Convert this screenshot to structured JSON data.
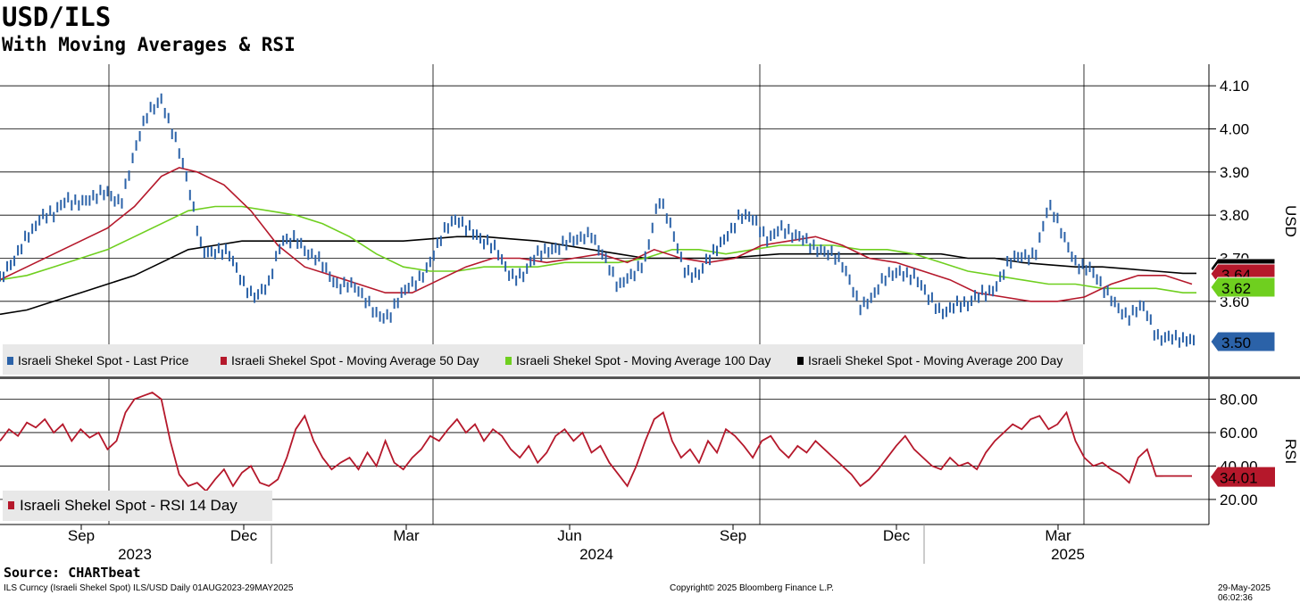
{
  "title": "USD/ILS",
  "subtitle": "With Moving Averages & RSI",
  "source": "Source: CHARTbeat",
  "footer": {
    "left": "ILS Curncy (Israeli Shekel Spot) ILS/USD  Daily 01AUG2023-29MAY2025",
    "center": "Copyright© 2025 Bloomberg Finance L.P.",
    "right": "29-May-2025 06:02:36"
  },
  "chart_data": [
    {
      "type": "line",
      "panel": "price",
      "ylabel": "USD",
      "ylim": [
        3.43,
        4.15
      ],
      "yticks": [
        "4.10",
        "4.00",
        "3.90",
        "3.80",
        "3.70",
        "3.60"
      ],
      "x_month_labels": [
        "Sep",
        "Dec",
        "Mar",
        "Jun",
        "Sep",
        "Dec",
        "Mar"
      ],
      "x_year_labels": [
        "2023",
        "2024",
        "2025"
      ],
      "grid": true,
      "legend_position": "bottom-left",
      "colors": {
        "last": "#2b62a8",
        "ma50": "#b5182b",
        "ma100": "#6fcf1f",
        "ma200": "#000000"
      },
      "series": [
        {
          "name": "Israeli Shekel Spot - Last Price",
          "x": [
            0,
            15,
            30,
            45,
            60,
            75,
            90,
            105,
            120,
            135,
            150,
            165,
            180,
            195,
            210,
            225,
            240,
            255,
            270,
            285,
            300,
            315,
            330,
            345,
            360,
            375,
            390,
            405,
            420,
            435,
            450,
            465,
            480,
            495,
            510,
            525,
            540,
            555,
            570,
            585,
            600,
            615,
            630,
            645,
            660,
            675,
            690,
            705,
            720,
            735,
            750,
            765,
            780,
            795,
            810,
            825,
            840,
            855,
            870,
            885,
            900,
            915,
            930,
            945,
            960,
            975,
            990,
            1005,
            1020,
            1035,
            1050,
            1065,
            1080,
            1095,
            1110,
            1125,
            1140,
            1155,
            1170,
            1185,
            1200,
            1215,
            1230,
            1245,
            1260,
            1275,
            1290,
            1305,
            1320,
            1335
          ],
          "values": [
            3.65,
            3.68,
            3.76,
            3.8,
            3.79,
            3.84,
            3.84,
            3.83,
            3.85,
            3.84,
            3.94,
            4.03,
            4.08,
            3.98,
            3.86,
            3.73,
            3.72,
            3.7,
            3.65,
            3.62,
            3.63,
            3.74,
            3.76,
            3.7,
            3.68,
            3.65,
            3.64,
            3.6,
            3.58,
            3.57,
            3.61,
            3.65,
            3.7,
            3.75,
            3.79,
            3.78,
            3.73,
            3.71,
            3.67,
            3.66,
            3.7,
            3.73,
            3.74,
            3.73,
            3.76,
            3.71,
            3.62,
            3.66,
            3.71,
            3.83,
            3.76,
            3.68,
            3.66,
            3.7,
            3.76,
            3.8,
            3.78,
            3.75,
            3.78,
            3.74,
            3.74,
            3.73,
            3.7,
            3.66,
            3.6,
            3.61,
            3.65,
            3.68,
            3.66,
            3.6,
            3.58,
            3.6,
            3.58,
            3.62,
            3.64,
            3.68,
            3.7,
            3.72,
            3.82,
            3.75,
            3.7,
            3.68,
            3.62,
            3.6,
            3.57,
            3.58,
            3.52,
            3.53,
            3.5,
            3.5
          ]
        },
        {
          "name": "Israeli Shekel Spot - Moving Average 50 Day",
          "x": [
            0,
            30,
            60,
            90,
            120,
            150,
            180,
            200,
            220,
            250,
            280,
            310,
            340,
            370,
            400,
            430,
            460,
            490,
            520,
            550,
            580,
            610,
            640,
            670,
            700,
            730,
            760,
            790,
            820,
            850,
            880,
            910,
            940,
            970,
            1000,
            1030,
            1060,
            1090,
            1120,
            1150,
            1180,
            1210,
            1240,
            1270,
            1300,
            1330
          ],
          "values": [
            3.65,
            3.68,
            3.71,
            3.74,
            3.77,
            3.82,
            3.89,
            3.91,
            3.9,
            3.87,
            3.81,
            3.73,
            3.68,
            3.66,
            3.64,
            3.62,
            3.62,
            3.65,
            3.68,
            3.7,
            3.7,
            3.69,
            3.7,
            3.71,
            3.69,
            3.72,
            3.7,
            3.69,
            3.7,
            3.73,
            3.74,
            3.75,
            3.73,
            3.7,
            3.69,
            3.67,
            3.65,
            3.62,
            3.61,
            3.6,
            3.6,
            3.61,
            3.64,
            3.66,
            3.66,
            3.64
          ]
        },
        {
          "name": "Israeli Shekel Spot - Moving Average 100 Day",
          "x": [
            0,
            30,
            60,
            90,
            120,
            150,
            180,
            210,
            240,
            270,
            300,
            330,
            360,
            390,
            420,
            450,
            480,
            510,
            540,
            570,
            600,
            630,
            660,
            690,
            720,
            750,
            780,
            810,
            840,
            870,
            900,
            930,
            960,
            990,
            1020,
            1050,
            1080,
            1110,
            1140,
            1170,
            1200,
            1230,
            1260,
            1290,
            1320,
            1335
          ],
          "values": [
            3.65,
            3.66,
            3.68,
            3.7,
            3.72,
            3.75,
            3.78,
            3.81,
            3.82,
            3.82,
            3.81,
            3.8,
            3.78,
            3.75,
            3.71,
            3.68,
            3.67,
            3.67,
            3.68,
            3.68,
            3.68,
            3.69,
            3.69,
            3.69,
            3.7,
            3.72,
            3.72,
            3.71,
            3.72,
            3.73,
            3.73,
            3.73,
            3.72,
            3.72,
            3.71,
            3.69,
            3.67,
            3.66,
            3.65,
            3.64,
            3.64,
            3.63,
            3.63,
            3.63,
            3.62,
            3.62
          ]
        },
        {
          "name": "Israeli Shekel Spot - Moving Average 200 Day",
          "x": [
            0,
            30,
            60,
            90,
            120,
            150,
            180,
            210,
            240,
            270,
            300,
            330,
            360,
            390,
            420,
            450,
            480,
            510,
            540,
            570,
            600,
            630,
            660,
            690,
            720,
            750,
            780,
            810,
            840,
            870,
            900,
            930,
            960,
            990,
            1020,
            1050,
            1080,
            1110,
            1140,
            1170,
            1200,
            1230,
            1260,
            1290,
            1320,
            1335
          ],
          "values": [
            3.57,
            3.58,
            3.6,
            3.62,
            3.64,
            3.66,
            3.69,
            3.72,
            3.73,
            3.74,
            3.74,
            3.74,
            3.74,
            3.74,
            3.74,
            3.74,
            3.745,
            3.75,
            3.75,
            3.745,
            3.74,
            3.73,
            3.72,
            3.71,
            3.7,
            3.7,
            3.7,
            3.7,
            3.705,
            3.71,
            3.71,
            3.71,
            3.71,
            3.71,
            3.71,
            3.71,
            3.7,
            3.7,
            3.69,
            3.685,
            3.68,
            3.68,
            3.675,
            3.67,
            3.665,
            3.665
          ]
        }
      ],
      "last_value_labels": [
        {
          "series": "ma200",
          "text": "3.66",
          "value": 3.66
        },
        {
          "series": "ma50",
          "text": "3.64",
          "value": 3.64
        },
        {
          "series": "ma100",
          "text": "3.62",
          "value": 3.62
        },
        {
          "series": "last",
          "text": "3.50",
          "value": 3.5
        }
      ]
    },
    {
      "type": "line",
      "panel": "rsi",
      "ylabel": "RSI",
      "ylim": [
        5,
        92
      ],
      "yticks": [
        "80.00",
        "60.00",
        "40.00",
        "20.00"
      ],
      "grid": true,
      "legend_position": "bottom-left",
      "color": "#b5182b",
      "series": [
        {
          "name": "Israeli Shekel Spot - RSI 14 Day",
          "x": [
            0,
            10,
            20,
            30,
            40,
            50,
            60,
            70,
            80,
            90,
            100,
            110,
            120,
            130,
            140,
            150,
            160,
            170,
            180,
            190,
            200,
            210,
            220,
            230,
            240,
            250,
            260,
            270,
            280,
            290,
            300,
            310,
            320,
            330,
            340,
            350,
            360,
            370,
            380,
            390,
            400,
            410,
            420,
            430,
            440,
            450,
            460,
            470,
            480,
            490,
            500,
            510,
            520,
            530,
            540,
            550,
            560,
            570,
            580,
            590,
            600,
            610,
            620,
            630,
            640,
            650,
            660,
            670,
            680,
            690,
            700,
            710,
            720,
            730,
            740,
            750,
            760,
            770,
            780,
            790,
            800,
            810,
            820,
            830,
            840,
            850,
            860,
            870,
            880,
            890,
            900,
            910,
            920,
            930,
            940,
            950,
            960,
            970,
            980,
            990,
            1000,
            1010,
            1020,
            1030,
            1040,
            1050,
            1060,
            1070,
            1080,
            1090,
            1100,
            1110,
            1120,
            1130,
            1140,
            1150,
            1160,
            1170,
            1180,
            1190,
            1200,
            1210,
            1220,
            1230,
            1240,
            1250,
            1260,
            1270,
            1280,
            1290,
            1300,
            1310,
            1320,
            1330
          ],
          "values": [
            55,
            62,
            58,
            66,
            63,
            68,
            60,
            65,
            55,
            62,
            57,
            60,
            50,
            55,
            72,
            80,
            82,
            84,
            80,
            55,
            35,
            28,
            30,
            25,
            32,
            38,
            28,
            36,
            40,
            30,
            28,
            32,
            45,
            62,
            70,
            55,
            45,
            38,
            42,
            45,
            38,
            48,
            40,
            55,
            42,
            38,
            45,
            50,
            58,
            55,
            62,
            68,
            60,
            65,
            55,
            62,
            58,
            50,
            45,
            52,
            42,
            48,
            58,
            62,
            55,
            60,
            48,
            52,
            42,
            35,
            28,
            40,
            55,
            68,
            72,
            55,
            45,
            50,
            42,
            55,
            48,
            62,
            58,
            52,
            45,
            55,
            58,
            50,
            45,
            52,
            48,
            55,
            50,
            45,
            40,
            35,
            28,
            32,
            38,
            45,
            52,
            58,
            50,
            45,
            40,
            38,
            45,
            40,
            42,
            38,
            48,
            55,
            60,
            65,
            62,
            68,
            70,
            62,
            65,
            72,
            55,
            45,
            40,
            42,
            38,
            35,
            30,
            45,
            50,
            34,
            34.01,
            34.01,
            34.01,
            34.01
          ]
        }
      ],
      "last_value_labels": [
        {
          "series": "rsi",
          "text": "34.01",
          "value": 34.01
        }
      ]
    }
  ]
}
